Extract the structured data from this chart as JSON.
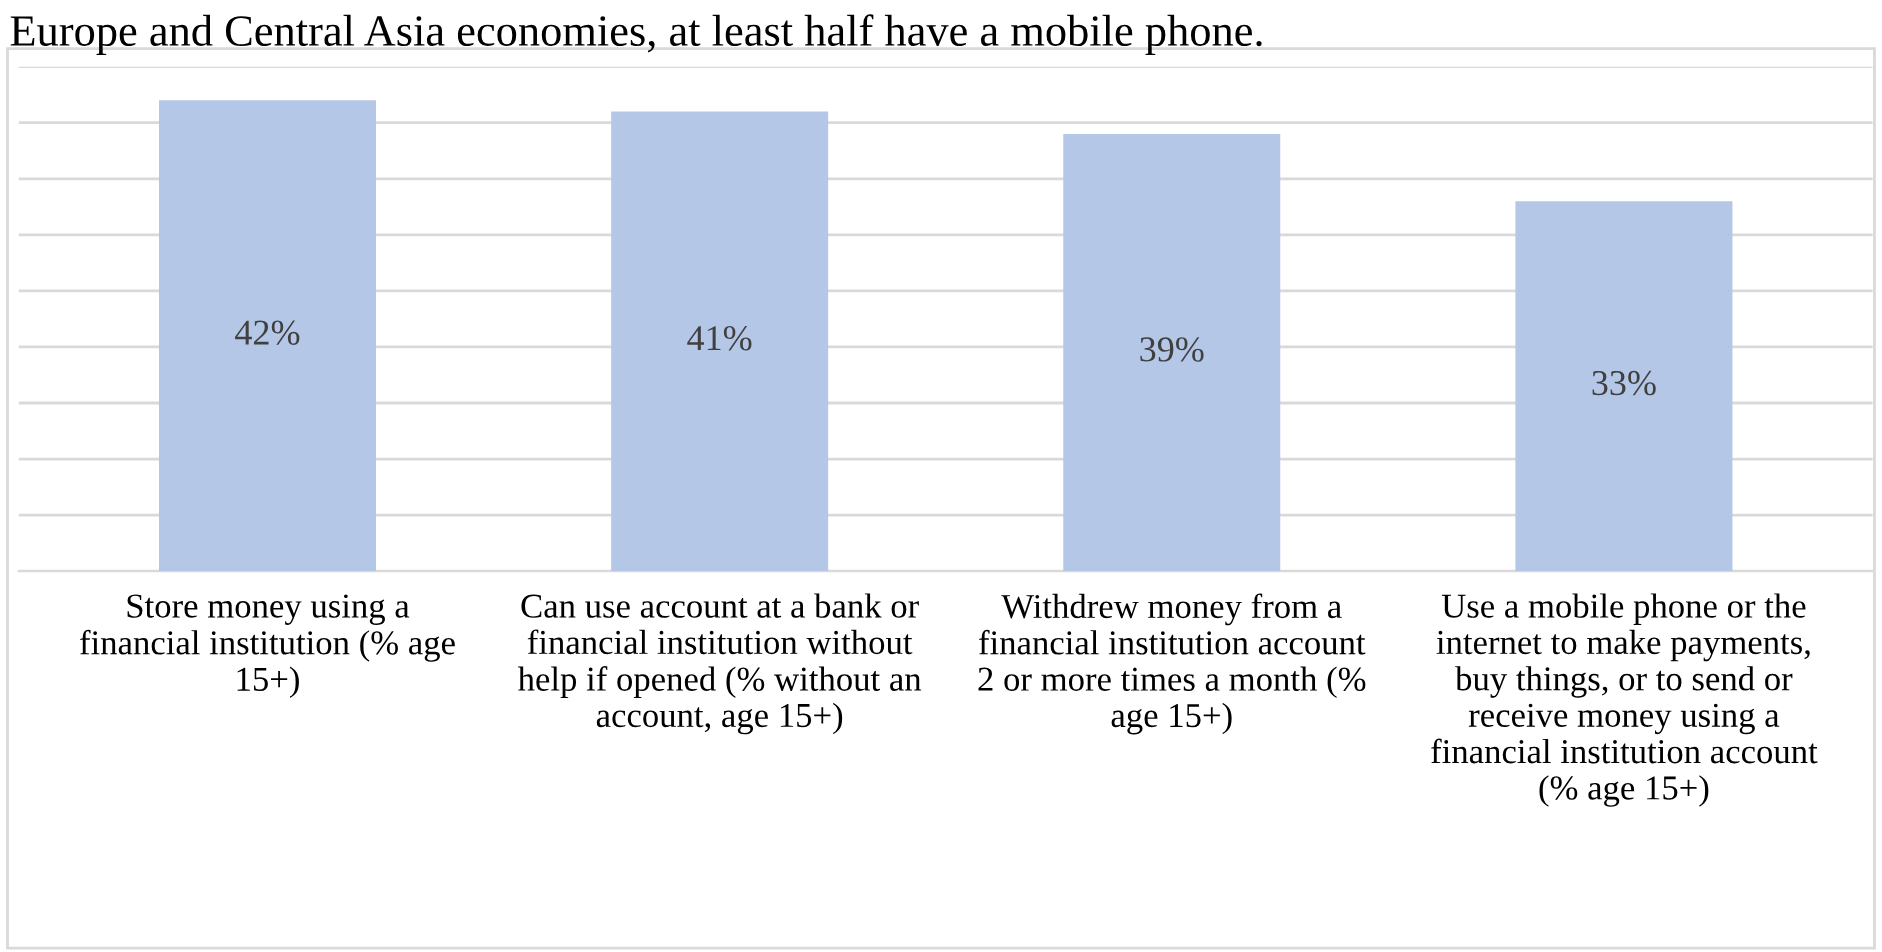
{
  "chart_data": {
    "type": "bar",
    "title": "Europe and Central Asia economies, at least half have a mobile phone.",
    "categories": [
      "Store money using a\nfinancial institution (% age\n15+)",
      "Can use account at a bank or\nfinancial institution without\nhelp if opened (% without an\naccount, age 15+)",
      "Withdrew money from a\nfinancial institution account\n2 or more times a month (%\nage 15+)",
      "Use a mobile phone or the\ninternet to make payments,\nbuy things, or to send or\nreceive money using a\nfinancial institution account\n(% age 15+)"
    ],
    "values": [
      42,
      41,
      39,
      33
    ],
    "value_labels": [
      "42%",
      "41%",
      "39%",
      "33%"
    ],
    "color": "#b4c7e7",
    "ylim": [
      0,
      45
    ],
    "yticks": [
      {
        "value": 0,
        "label": null
      },
      {
        "value": 5,
        "label": null
      },
      {
        "value": 10,
        "label": null
      },
      {
        "value": 15,
        "label": null
      },
      {
        "value": 20,
        "label": null
      },
      {
        "value": 25,
        "label": null
      },
      {
        "value": 30,
        "label": null
      },
      {
        "value": 35,
        "label": null
      },
      {
        "value": 40,
        "label": null
      },
      {
        "value": 45,
        "label": null
      }
    ],
    "grid": "y",
    "tick_labels": "x"
  }
}
